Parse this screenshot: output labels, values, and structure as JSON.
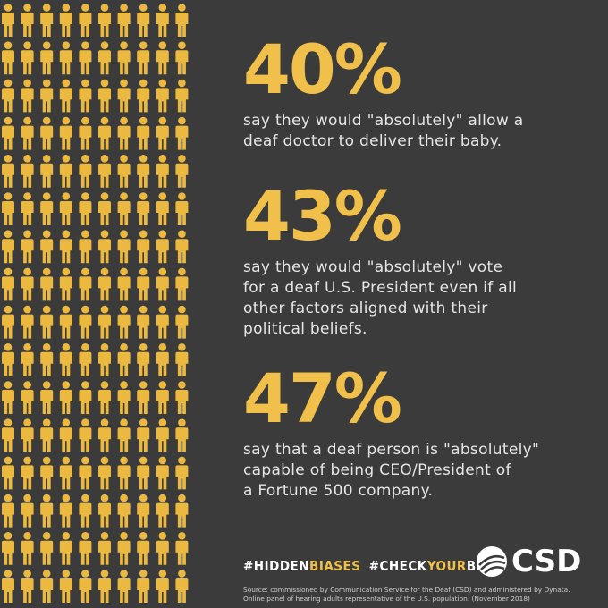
{
  "stats": [
    {
      "figure": "40%",
      "lines": [
        "say they would \"absolutely\" allow a",
        "deaf doctor to deliver their baby."
      ]
    },
    {
      "figure": "43%",
      "lines": [
        "say they would \"absolutely\" vote",
        "for a deaf U.S. President even if all",
        "other factors aligned with their",
        "political beliefs."
      ]
    },
    {
      "figure": "47%",
      "lines": [
        "say that a deaf person is \"absolutely\"",
        "capable of being CEO/President of",
        "a Fortune 500 company."
      ]
    }
  ],
  "hashtags": [
    [
      "#HIDDEN",
      "BIASES"
    ],
    [
      "#CHECK",
      "YOUR",
      "BIAS"
    ]
  ],
  "logo": "CSD",
  "source": [
    "Source: commissioned by Communication Service for the Deaf (CSD) and administered by Dynata.",
    "Online panel of hearing adults representative of the U.S. population. (November 2018)"
  ]
}
